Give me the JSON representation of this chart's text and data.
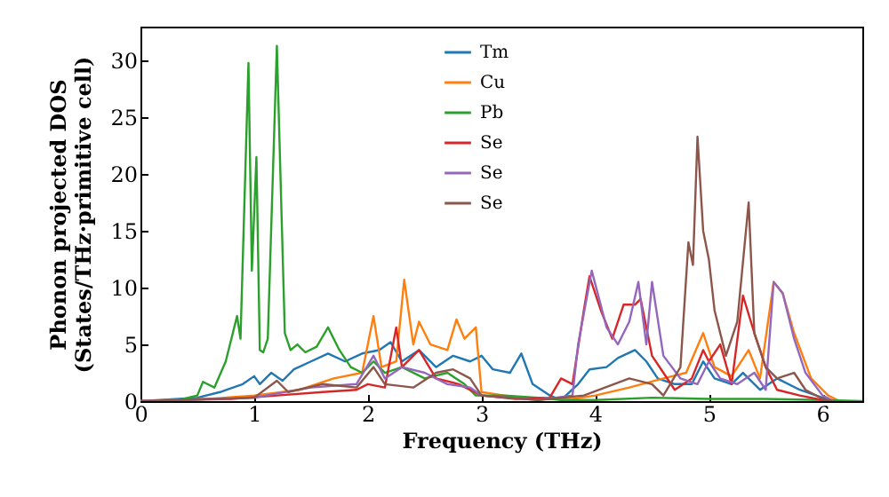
{
  "chart_data": {
    "type": "line",
    "xlabel": "Frequency (THz)",
    "ylabel": "Phonon projected DOS\n(States/THz·primitive cell)",
    "xlim": [
      0,
      6.35
    ],
    "ylim": [
      0,
      33
    ],
    "xticks": [
      0,
      1,
      2,
      3,
      4,
      5,
      6
    ],
    "yticks": [
      0,
      5,
      10,
      15,
      20,
      25,
      30
    ],
    "legend": "top",
    "grid": false,
    "marker": "none",
    "line_style": "solid",
    "series": [
      {
        "name": "Tm",
        "color": "#1f77b4",
        "x": [
          0,
          0.5,
          0.7,
          0.9,
          1.0,
          1.05,
          1.15,
          1.25,
          1.35,
          1.5,
          1.65,
          1.8,
          1.95,
          2.1,
          2.2,
          2.3,
          2.45,
          2.6,
          2.75,
          2.9,
          3.0,
          3.1,
          3.25,
          3.35,
          3.45,
          3.6,
          3.7,
          3.85,
          3.95,
          4.1,
          4.2,
          4.35,
          4.45,
          4.55,
          4.7,
          4.85,
          4.95,
          5.05,
          5.2,
          5.3,
          5.45,
          5.6,
          5.8,
          6.0,
          6.1
        ],
        "values": [
          0,
          0.3,
          0.8,
          1.5,
          2.2,
          1.5,
          2.5,
          1.8,
          2.8,
          3.5,
          4.2,
          3.5,
          4.2,
          4.5,
          5.2,
          3.5,
          4.5,
          3,
          4,
          3.5,
          4,
          2.8,
          2.5,
          4.2,
          1.5,
          0.5,
          0.1,
          1.5,
          2.8,
          3,
          3.8,
          4.5,
          3.5,
          2,
          1.5,
          1.5,
          3.5,
          2,
          1.5,
          2.5,
          1,
          2,
          1,
          0.3,
          0
        ]
      },
      {
        "name": "Cu",
        "color": "#ff7f0e",
        "x": [
          0,
          0.6,
          1.0,
          1.4,
          1.7,
          1.95,
          2.05,
          2.12,
          2.25,
          2.32,
          2.4,
          2.45,
          2.55,
          2.7,
          2.78,
          2.85,
          2.95,
          3.0,
          3.2,
          3.5,
          3.8,
          4.0,
          4.3,
          4.6,
          4.8,
          4.95,
          5.05,
          5.2,
          5.35,
          5.45,
          5.57,
          5.65,
          5.75,
          5.9,
          6.05,
          6.15
        ],
        "values": [
          0,
          0.2,
          0.5,
          1,
          2,
          2.5,
          7.5,
          3,
          3.5,
          10.7,
          5,
          7,
          5,
          4.5,
          7.2,
          5.5,
          6.5,
          0.8,
          0.5,
          0.2,
          0.2,
          0.5,
          1.2,
          2,
          2.5,
          6,
          3,
          2.2,
          4.5,
          2,
          10.5,
          9.5,
          6,
          2,
          0.5,
          0
        ]
      },
      {
        "name": "Pb",
        "color": "#2ca02c",
        "x": [
          0,
          0.3,
          0.5,
          0.55,
          0.65,
          0.75,
          0.85,
          0.88,
          0.95,
          0.98,
          1.02,
          1.05,
          1.08,
          1.12,
          1.2,
          1.27,
          1.32,
          1.38,
          1.45,
          1.55,
          1.65,
          1.75,
          1.85,
          1.95,
          2.05,
          2.15,
          2.3,
          2.5,
          2.7,
          2.85,
          2.95,
          3.2,
          3.5,
          3.7,
          4.0,
          4.5,
          5.0,
          5.5,
          6.0,
          6.35
        ],
        "values": [
          0,
          0,
          0.5,
          1.7,
          1.2,
          3.5,
          7.5,
          5.5,
          29.8,
          11.5,
          21.5,
          4.5,
          4.3,
          5.5,
          31.3,
          6,
          4.5,
          5,
          4.3,
          4.8,
          6.5,
          4.5,
          3,
          2.5,
          3.5,
          2.5,
          3,
          2,
          2.5,
          1.5,
          0.5,
          0.5,
          0.3,
          0.1,
          0.1,
          0.3,
          0.2,
          0.2,
          0.1,
          0
        ]
      },
      {
        "name": "Se",
        "color": "#d62728",
        "x": [
          0,
          0.8,
          1.2,
          1.6,
          1.9,
          2.0,
          2.15,
          2.25,
          2.3,
          2.45,
          2.6,
          2.8,
          3.0,
          3.3,
          3.6,
          3.7,
          3.8,
          3.9,
          3.95,
          4.05,
          4.15,
          4.25,
          4.35,
          4.4,
          4.5,
          4.6,
          4.7,
          4.85,
          4.95,
          5.0,
          5.1,
          5.2,
          5.3,
          5.4,
          5.5,
          5.6,
          5.8,
          6.0,
          6.1
        ],
        "values": [
          0,
          0.2,
          0.5,
          0.8,
          1,
          1.5,
          1.2,
          6.5,
          3,
          4.5,
          2,
          1.5,
          0.5,
          0.2,
          0.3,
          2,
          1.5,
          8,
          11,
          8,
          5.5,
          8.5,
          8.5,
          9,
          4,
          2.5,
          1,
          2,
          4.5,
          3.5,
          5,
          1.5,
          9.3,
          6,
          3,
          1,
          0.5,
          0.1,
          0
        ]
      },
      {
        "name": "Se",
        "color": "#9467bd",
        "x": [
          0,
          1.0,
          1.5,
          1.9,
          2.05,
          2.15,
          2.3,
          2.5,
          2.7,
          2.9,
          3.0,
          3.5,
          3.8,
          3.85,
          3.97,
          4.1,
          4.2,
          4.3,
          4.38,
          4.45,
          4.5,
          4.6,
          4.75,
          4.9,
          5.0,
          5.1,
          5.25,
          5.4,
          5.5,
          5.57,
          5.65,
          5.75,
          5.85,
          6.0,
          6.1
        ],
        "values": [
          0,
          0.3,
          1.2,
          1.5,
          4,
          2,
          3,
          2.5,
          1.5,
          1.2,
          0.5,
          0.1,
          0.5,
          5,
          11.5,
          6.5,
          5,
          7,
          10.5,
          5,
          10.5,
          4,
          2,
          1.5,
          3.5,
          2,
          1.5,
          2.5,
          1,
          10.5,
          9.5,
          5.5,
          2.5,
          0.5,
          0
        ]
      },
      {
        "name": "Se",
        "color": "#8c564b",
        "x": [
          0,
          1.0,
          1.2,
          1.3,
          1.6,
          1.9,
          2.05,
          2.15,
          2.4,
          2.6,
          2.75,
          2.9,
          3.0,
          3.5,
          3.9,
          4.3,
          4.5,
          4.6,
          4.75,
          4.82,
          4.86,
          4.9,
          4.95,
          5.0,
          5.05,
          5.15,
          5.25,
          5.35,
          5.4,
          5.5,
          5.6,
          5.75,
          5.85,
          6.0,
          6.1
        ],
        "values": [
          0,
          0.3,
          1.8,
          0.8,
          1.5,
          1.2,
          3,
          1.5,
          1.2,
          2.5,
          2.8,
          2,
          0.5,
          0.1,
          0.5,
          2,
          1.5,
          0.5,
          3,
          14,
          12,
          23.3,
          15,
          12.5,
          8,
          4,
          7,
          17.5,
          6,
          3,
          2,
          2.5,
          1,
          0.2,
          0
        ]
      }
    ]
  }
}
